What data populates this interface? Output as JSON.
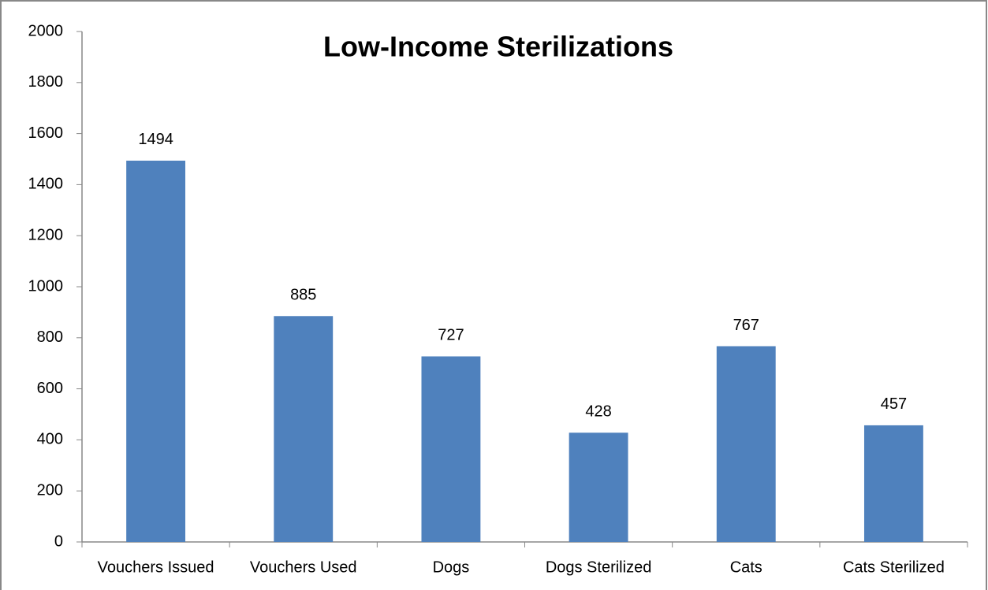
{
  "chart_data": {
    "type": "bar",
    "title": "Low-Income Sterilizations",
    "categories": [
      "Vouchers Issued",
      "Vouchers Used",
      "Dogs",
      "Dogs Sterilized",
      "Cats",
      "Cats Sterilized"
    ],
    "values": [
      1494,
      885,
      727,
      428,
      767,
      457
    ],
    "color": "#4f81bd",
    "ylim": [
      0,
      2000
    ],
    "yticks": [
      0,
      200,
      400,
      600,
      800,
      1000,
      1200,
      1400,
      1600,
      1800,
      2000
    ],
    "grid": false
  }
}
